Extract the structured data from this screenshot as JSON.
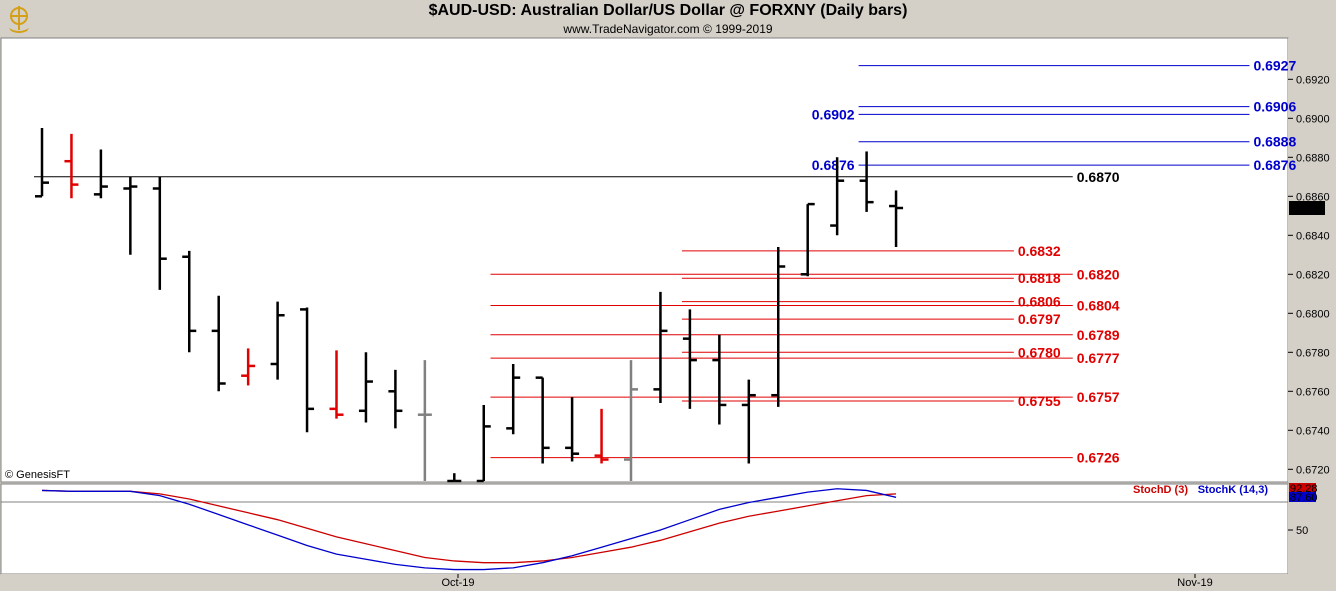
{
  "header": {
    "title": "$AUD-USD:  Australian Dollar/US Dollar @ FORXNY  (Daily bars)",
    "subtitle": "www.TradeNavigator.com © 1999-2019",
    "logo_icon": "gold-ship-wheel-icon"
  },
  "colors": {
    "up_bar": "#000000",
    "down_bar": "#e00000",
    "neutral_bar": "#808080",
    "blue_level": "#0000cc",
    "red_level": "#e00000",
    "black_level": "#000000",
    "stoch_d": "#cc0000",
    "stoch_k": "#0000cc",
    "price_tag_bg": "#000000"
  },
  "watermark": "© GenesisFT",
  "chart_data": [
    {
      "type": "ohlc",
      "title": "$AUD-USD:  Australian Dollar/US Dollar @ FORXNY  (Daily bars)",
      "ylim": [
        0.6714,
        0.6934
      ],
      "y_ticks": [
        "0.6920",
        "0.6900",
        "0.6880",
        "0.6860",
        "0.6840",
        "0.6820",
        "0.6800",
        "0.6780",
        "0.6760",
        "0.6740",
        "0.6720"
      ],
      "last_price_label": "0.6854",
      "x_tick_labels": [
        "Oct-19",
        "Nov-19"
      ],
      "bars": [
        {
          "o": 0.686,
          "h": 0.6895,
          "l": 0.686,
          "c": 0.6867,
          "color": "up"
        },
        {
          "o": 0.6878,
          "h": 0.6892,
          "l": 0.6859,
          "c": 0.6866,
          "color": "down"
        },
        {
          "o": 0.6861,
          "h": 0.6884,
          "l": 0.6859,
          "c": 0.6865,
          "color": "up"
        },
        {
          "o": 0.6864,
          "h": 0.687,
          "l": 0.683,
          "c": 0.6865,
          "color": "up"
        },
        {
          "o": 0.6864,
          "h": 0.687,
          "l": 0.6812,
          "c": 0.6828,
          "color": "up"
        },
        {
          "o": 0.6829,
          "h": 0.6832,
          "l": 0.678,
          "c": 0.6791,
          "color": "up"
        },
        {
          "o": 0.6791,
          "h": 0.6809,
          "l": 0.676,
          "c": 0.6764,
          "color": "up"
        },
        {
          "o": 0.6768,
          "h": 0.6782,
          "l": 0.6763,
          "c": 0.6773,
          "color": "down"
        },
        {
          "o": 0.6774,
          "h": 0.6806,
          "l": 0.6766,
          "c": 0.6799,
          "color": "up"
        },
        {
          "o": 0.6802,
          "h": 0.6803,
          "l": 0.6739,
          "c": 0.6751,
          "color": "up"
        },
        {
          "o": 0.6751,
          "h": 0.6781,
          "l": 0.6746,
          "c": 0.6748,
          "color": "down"
        },
        {
          "o": 0.675,
          "h": 0.678,
          "l": 0.6744,
          "c": 0.6765,
          "color": "up"
        },
        {
          "o": 0.676,
          "h": 0.6771,
          "l": 0.6741,
          "c": 0.675,
          "color": "up"
        },
        {
          "o": 0.6748,
          "h": 0.6776,
          "l": 0.6714,
          "c": 0.6748,
          "color": "neutral"
        },
        {
          "o": 0.6714,
          "h": 0.6718,
          "l": 0.6714,
          "c": 0.6714,
          "color": "up"
        },
        {
          "o": 0.6714,
          "h": 0.6753,
          "l": 0.6714,
          "c": 0.6742,
          "color": "up"
        },
        {
          "o": 0.6741,
          "h": 0.6774,
          "l": 0.6738,
          "c": 0.6767,
          "color": "up"
        },
        {
          "o": 0.6767,
          "h": 0.6767,
          "l": 0.6723,
          "c": 0.6731,
          "color": "up"
        },
        {
          "o": 0.6731,
          "h": 0.6757,
          "l": 0.6724,
          "c": 0.6728,
          "color": "up"
        },
        {
          "o": 0.6727,
          "h": 0.6751,
          "l": 0.6723,
          "c": 0.6725,
          "color": "down"
        },
        {
          "o": 0.6725,
          "h": 0.6776,
          "l": 0.6714,
          "c": 0.6761,
          "color": "neutral"
        },
        {
          "o": 0.6761,
          "h": 0.6811,
          "l": 0.6754,
          "c": 0.6791,
          "color": "up"
        },
        {
          "o": 0.6787,
          "h": 0.6802,
          "l": 0.6751,
          "c": 0.6776,
          "color": "up"
        },
        {
          "o": 0.6776,
          "h": 0.6789,
          "l": 0.6743,
          "c": 0.6753,
          "color": "up"
        },
        {
          "o": 0.6753,
          "h": 0.6766,
          "l": 0.6723,
          "c": 0.6758,
          "color": "up"
        },
        {
          "o": 0.6758,
          "h": 0.6834,
          "l": 0.6752,
          "c": 0.6824,
          "color": "up"
        },
        {
          "o": 0.682,
          "h": 0.6856,
          "l": 0.6819,
          "c": 0.6856,
          "color": "up"
        },
        {
          "o": 0.6845,
          "h": 0.688,
          "l": 0.684,
          "c": 0.6868,
          "color": "up"
        },
        {
          "o": 0.6868,
          "h": 0.6883,
          "l": 0.6852,
          "c": 0.6857,
          "color": "up"
        },
        {
          "o": 0.6855,
          "h": 0.6863,
          "l": 0.6834,
          "c": 0.6854,
          "color": "up"
        }
      ],
      "levels": [
        {
          "value": 0.6927,
          "label": "0.6927",
          "color": "blue",
          "x_from_bar": 28,
          "x_to_bar": 41,
          "label_side": "right"
        },
        {
          "value": 0.6906,
          "label": "0.6906",
          "color": "blue",
          "x_from_bar": 28,
          "x_to_bar": 41,
          "label_side": "right"
        },
        {
          "value": 0.6902,
          "label": "0.6902",
          "color": "blue",
          "x_from_bar": 28,
          "x_to_bar": 41,
          "label_side": "left"
        },
        {
          "value": 0.6888,
          "label": "0.6888",
          "color": "blue",
          "x_from_bar": 28,
          "x_to_bar": 41,
          "label_side": "right"
        },
        {
          "value": 0.6876,
          "label": "0.6876",
          "color": "blue",
          "x_from_bar": 28,
          "x_to_bar": 41,
          "label_side": "both"
        },
        {
          "value": 0.687,
          "label": "0.6870",
          "color": "black",
          "x_from_bar": 0,
          "x_to_bar": 35,
          "label_side": "right"
        },
        {
          "value": 0.6832,
          "label": "0.6832",
          "color": "red",
          "x_from_bar": 22,
          "x_to_bar": 33,
          "label_side": "right"
        },
        {
          "value": 0.682,
          "label": "0.6820",
          "color": "red",
          "x_from_bar": 15.5,
          "x_to_bar": 35,
          "label_side": "right"
        },
        {
          "value": 0.6818,
          "label": "0.6818",
          "color": "red",
          "x_from_bar": 22,
          "x_to_bar": 33,
          "label_side": "right"
        },
        {
          "value": 0.6806,
          "label": "0.6806",
          "color": "red",
          "x_from_bar": 22,
          "x_to_bar": 33,
          "label_side": "right"
        },
        {
          "value": 0.6804,
          "label": "0.6804",
          "color": "red",
          "x_from_bar": 15.5,
          "x_to_bar": 35,
          "label_side": "right"
        },
        {
          "value": 0.6797,
          "label": "0.6797",
          "color": "red",
          "x_from_bar": 22,
          "x_to_bar": 33,
          "label_side": "right"
        },
        {
          "value": 0.6789,
          "label": "0.6789",
          "color": "red",
          "x_from_bar": 15.5,
          "x_to_bar": 35,
          "label_side": "right"
        },
        {
          "value": 0.678,
          "label": "0.6780",
          "color": "red",
          "x_from_bar": 22,
          "x_to_bar": 33,
          "label_side": "right"
        },
        {
          "value": 0.6777,
          "label": "0.6777",
          "color": "red",
          "x_from_bar": 15.5,
          "x_to_bar": 35,
          "label_side": "right"
        },
        {
          "value": 0.6755,
          "label": "0.6755",
          "color": "red",
          "x_from_bar": 22,
          "x_to_bar": 33,
          "label_side": "right"
        },
        {
          "value": 0.6757,
          "label": "0.6757",
          "color": "red",
          "x_from_bar": 15.5,
          "x_to_bar": 35,
          "label_side": "right"
        },
        {
          "value": 0.6726,
          "label": "0.6726",
          "color": "red",
          "x_from_bar": 15.5,
          "x_to_bar": 35,
          "label_side": "right"
        }
      ]
    },
    {
      "type": "line",
      "ylim": [
        0,
        100
      ],
      "y_ticks": [
        "50"
      ],
      "series": [
        {
          "name": "StochD (3)",
          "color": "#cc0000",
          "last_label": "92.28",
          "values": [
            96,
            95,
            95,
            95,
            92,
            86,
            78,
            70,
            62,
            52,
            42,
            34,
            26,
            18,
            14,
            12,
            12,
            14,
            18,
            24,
            30,
            38,
            48,
            58,
            66,
            72,
            78,
            84,
            90,
            92
          ]
        },
        {
          "name": "StochK (14,3)",
          "color": "#0000cc",
          "last_label": "87.60",
          "values": [
            96,
            95,
            95,
            95,
            90,
            80,
            68,
            56,
            44,
            32,
            22,
            16,
            10,
            6,
            4,
            4,
            6,
            12,
            20,
            30,
            40,
            50,
            62,
            74,
            82,
            88,
            94,
            98,
            96,
            88
          ]
        }
      ]
    }
  ]
}
